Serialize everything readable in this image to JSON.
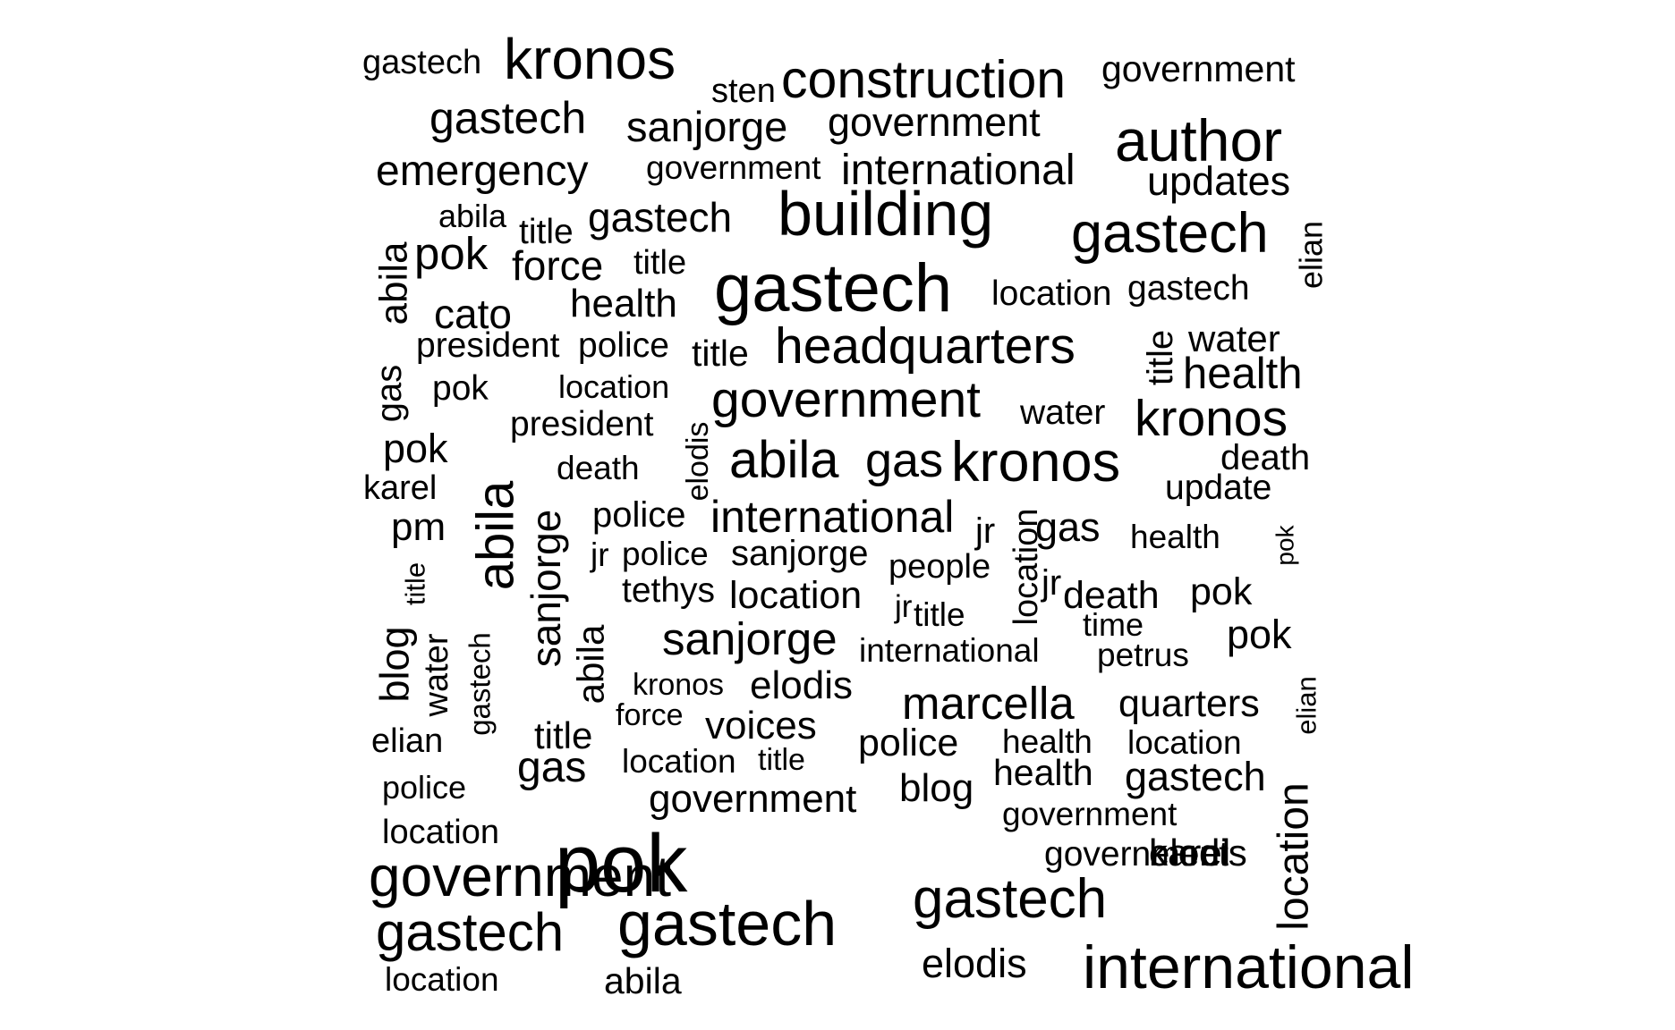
{
  "chart_data": {
    "type": "wordcloud",
    "title": "",
    "words": [
      {
        "text": "gastech",
        "weight": 3
      },
      {
        "text": "kronos",
        "weight": 5
      },
      {
        "text": "sten",
        "weight": 3
      },
      {
        "text": "construction",
        "weight": 5
      },
      {
        "text": "government",
        "weight": 3
      },
      {
        "text": "gastech",
        "weight": 4
      },
      {
        "text": "sanjorge",
        "weight": 4
      },
      {
        "text": "government",
        "weight": 4
      },
      {
        "text": "author",
        "weight": 6
      },
      {
        "text": "emergency",
        "weight": 4
      },
      {
        "text": "government",
        "weight": 3
      },
      {
        "text": "international",
        "weight": 4
      },
      {
        "text": "updates",
        "weight": 4
      },
      {
        "text": "abila",
        "weight": 3
      },
      {
        "text": "title",
        "weight": 3
      },
      {
        "text": "gastech",
        "weight": 4
      },
      {
        "text": "building",
        "weight": 6
      },
      {
        "text": "gastech",
        "weight": 5
      },
      {
        "text": "elian",
        "weight": 3
      },
      {
        "text": "abila",
        "weight": 4
      },
      {
        "text": "pok",
        "weight": 4
      },
      {
        "text": "force",
        "weight": 4
      },
      {
        "text": "title",
        "weight": 3
      },
      {
        "text": "gastech",
        "weight": 6
      },
      {
        "text": "location",
        "weight": 3
      },
      {
        "text": "gastech",
        "weight": 3
      },
      {
        "text": "cato",
        "weight": 4
      },
      {
        "text": "health",
        "weight": 4
      },
      {
        "text": "president",
        "weight": 3
      },
      {
        "text": "police",
        "weight": 3
      },
      {
        "text": "title",
        "weight": 4
      },
      {
        "text": "headquarters",
        "weight": 5
      },
      {
        "text": "title",
        "weight": 3
      },
      {
        "text": "water",
        "weight": 4
      },
      {
        "text": "gas",
        "weight": 4
      },
      {
        "text": "pok",
        "weight": 3
      },
      {
        "text": "location",
        "weight": 3
      },
      {
        "text": "health",
        "weight": 4
      },
      {
        "text": "elodis",
        "weight": 3
      },
      {
        "text": "government",
        "weight": 5
      },
      {
        "text": "water",
        "weight": 3
      },
      {
        "text": "president",
        "weight": 3
      },
      {
        "text": "kronos",
        "weight": 5
      },
      {
        "text": "pok",
        "weight": 4
      },
      {
        "text": "abila",
        "weight": 5
      },
      {
        "text": "gas",
        "weight": 5
      },
      {
        "text": "kronos",
        "weight": 6
      },
      {
        "text": "death",
        "weight": 3
      },
      {
        "text": "death",
        "weight": 3
      },
      {
        "text": "karel",
        "weight": 3
      },
      {
        "text": "abila",
        "weight": 6
      },
      {
        "text": "update",
        "weight": 3
      },
      {
        "text": "police",
        "weight": 3
      },
      {
        "text": "international",
        "weight": 4
      },
      {
        "text": "pm",
        "weight": 4
      },
      {
        "text": "jr",
        "weight": 3
      },
      {
        "text": "gas",
        "weight": 4
      },
      {
        "text": "health",
        "weight": 3
      },
      {
        "text": "sanjorge",
        "weight": 5
      },
      {
        "text": "jr",
        "weight": 3
      },
      {
        "text": "police",
        "weight": 3
      },
      {
        "text": "sanjorge",
        "weight": 3
      },
      {
        "text": "people",
        "weight": 3
      },
      {
        "text": "location",
        "weight": 3
      },
      {
        "text": "pok",
        "weight": 2
      },
      {
        "text": "title",
        "weight": 3
      },
      {
        "text": "tethys",
        "weight": 3
      },
      {
        "text": "location",
        "weight": 3
      },
      {
        "text": "jr",
        "weight": 3
      },
      {
        "text": "jr",
        "weight": 3
      },
      {
        "text": "death",
        "weight": 4
      },
      {
        "text": "pok",
        "weight": 4
      },
      {
        "text": "title",
        "weight": 3
      },
      {
        "text": "blog",
        "weight": 4
      },
      {
        "text": "time",
        "weight": 3
      },
      {
        "text": "sanjorge",
        "weight": 4
      },
      {
        "text": "pok",
        "weight": 4
      },
      {
        "text": "water",
        "weight": 3
      },
      {
        "text": "gastech",
        "weight": 3
      },
      {
        "text": "abila",
        "weight": 4
      },
      {
        "text": "international",
        "weight": 3
      },
      {
        "text": "petrus",
        "weight": 3
      },
      {
        "text": "kronos",
        "weight": 3
      },
      {
        "text": "elodis",
        "weight": 4
      },
      {
        "text": "force",
        "weight": 3
      },
      {
        "text": "marcella",
        "weight": 5
      },
      {
        "text": "quarters",
        "weight": 4
      },
      {
        "text": "elian",
        "weight": 3
      },
      {
        "text": "voices",
        "weight": 4
      },
      {
        "text": "title",
        "weight": 4
      },
      {
        "text": "police",
        "weight": 4
      },
      {
        "text": "health",
        "weight": 3
      },
      {
        "text": "location",
        "weight": 3
      },
      {
        "text": "elian",
        "weight": 3
      },
      {
        "text": "location",
        "weight": 3
      },
      {
        "text": "title",
        "weight": 3
      },
      {
        "text": "gas",
        "weight": 4
      },
      {
        "text": "blog",
        "weight": 4
      },
      {
        "text": "health",
        "weight": 4
      },
      {
        "text": "gastech",
        "weight": 4
      },
      {
        "text": "police",
        "weight": 3
      },
      {
        "text": "government",
        "weight": 4
      },
      {
        "text": "government",
        "weight": 3
      },
      {
        "text": "karel",
        "weight": 4
      },
      {
        "text": "location",
        "weight": 3
      },
      {
        "text": "location",
        "weight": 7
      },
      {
        "text": "pok",
        "weight": 6
      },
      {
        "text": "government",
        "weight": 3
      },
      {
        "text": "elodis",
        "weight": 5
      },
      {
        "text": "government",
        "weight": 5
      },
      {
        "text": "gastech",
        "weight": 5
      },
      {
        "text": "gastech",
        "weight": 6
      },
      {
        "text": "gastech",
        "weight": 4
      },
      {
        "text": "elodis",
        "weight": 6
      },
      {
        "text": "international",
        "weight": 3
      },
      {
        "text": "location",
        "weight": 3
      },
      {
        "text": "abila",
        "weight": 3
      }
    ]
  }
}
